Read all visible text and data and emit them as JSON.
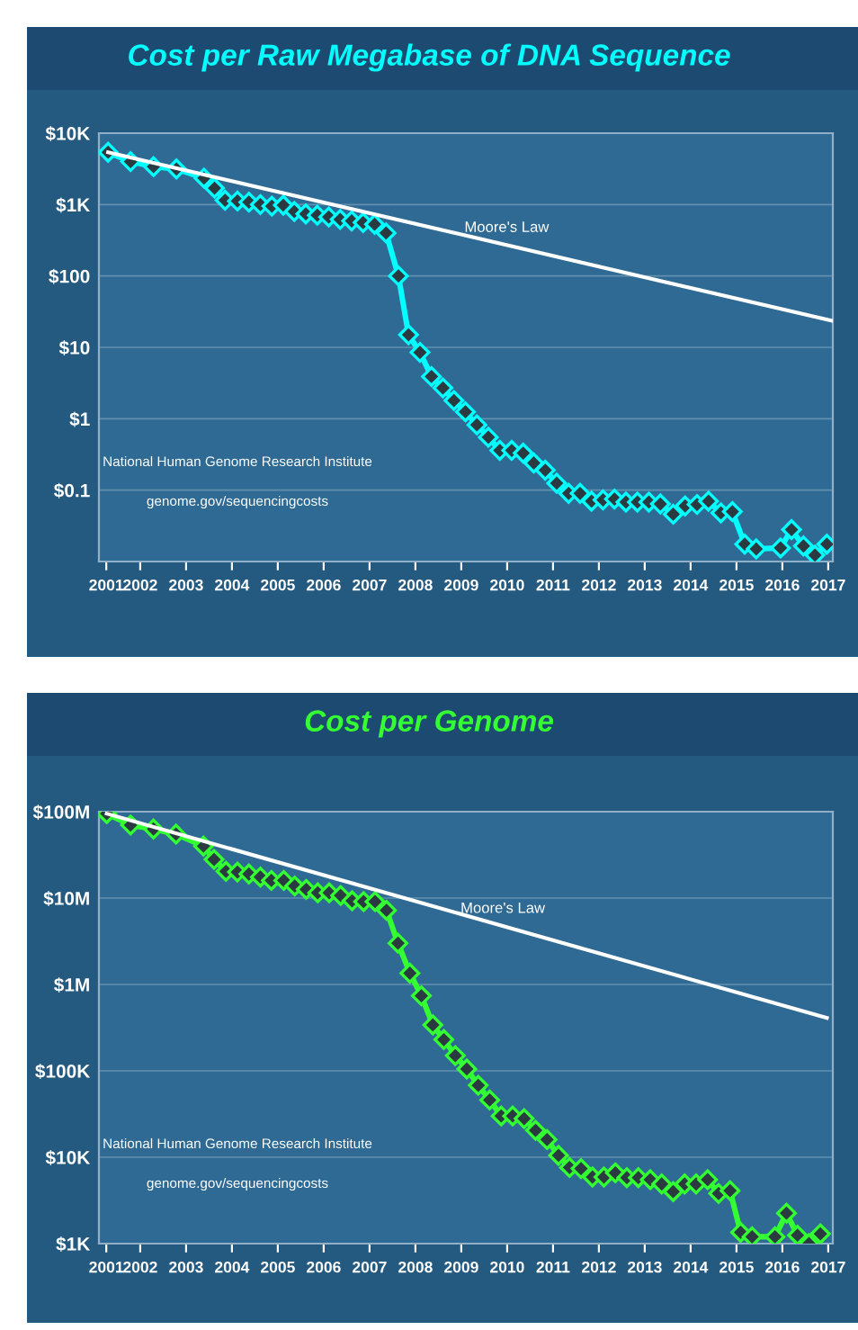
{
  "chart_data": [
    {
      "type": "line",
      "title": "Cost per Raw Megabase of DNA Sequence",
      "log": "y",
      "grid": "y",
      "marker": "diamond",
      "line_style": "solid",
      "xlim": [
        2001.1,
        2017.1
      ],
      "ylim": [
        0.01,
        10000
      ],
      "xticks": [
        {
          "value": 2001.26,
          "label": "2001"
        },
        2002,
        2003,
        2004,
        2005,
        2006,
        2007,
        2008,
        2009,
        2010,
        2011,
        2012,
        2013,
        2014,
        2015,
        2016,
        2017
      ],
      "yticks": [
        {
          "value": 0.01,
          "label": null
        },
        {
          "value": 0.1,
          "label": "$0.1"
        },
        {
          "value": 1,
          "label": "$1"
        },
        {
          "value": 10,
          "label": "$10"
        },
        {
          "value": 100,
          "label": "$100"
        },
        {
          "value": 1000,
          "label": "$1K"
        },
        {
          "value": 10000,
          "label": "$10K"
        }
      ],
      "annotations": [
        "National Human Genome Research Institute",
        "genome.gov/sequencingcosts"
      ],
      "series": [
        {
          "color": "#00ffff",
          "x": [
            2001.3,
            2001.79,
            2002.29,
            2002.79,
            2003.39,
            2003.62,
            2003.85,
            2004.12,
            2004.37,
            2004.62,
            2004.87,
            2005.12,
            2005.36,
            2005.61,
            2005.86,
            2006.11,
            2006.36,
            2006.61,
            2006.86,
            2007.11,
            2007.36,
            2007.63,
            2007.85,
            2008.1,
            2008.35,
            2008.6,
            2008.84,
            2009.09,
            2009.34,
            2009.59,
            2009.84,
            2010.1,
            2010.35,
            2010.58,
            2010.83,
            2011.08,
            2011.34,
            2011.59,
            2011.84,
            2012.09,
            2012.34,
            2012.59,
            2012.84,
            2013.09,
            2013.34,
            2013.62,
            2013.88,
            2014.14,
            2014.39,
            2014.66,
            2014.91,
            2015.18,
            2015.43,
            2015.96,
            2016.2,
            2016.46,
            2016.71,
            2016.97
          ],
          "values": [
            5400,
            4000,
            3400,
            3150,
            2350,
            1700,
            1150,
            1120,
            1080,
            1000,
            950,
            980,
            800,
            740,
            710,
            670,
            620,
            590,
            560,
            530,
            400,
            100,
            15,
            8.5,
            3.9,
            2.7,
            1.8,
            1.25,
            0.82,
            0.55,
            0.36,
            0.36,
            0.33,
            0.24,
            0.19,
            0.125,
            0.09,
            0.09,
            0.07,
            0.073,
            0.075,
            0.068,
            0.068,
            0.068,
            0.064,
            0.046,
            0.06,
            0.063,
            0.07,
            0.048,
            0.05,
            0.0175,
            0.015,
            0.0155,
            0.028,
            0.0165,
            0.0123,
            0.0175
          ]
        },
        {
          "name": "Moore's Law",
          "color": "#ffffff",
          "marker": "none",
          "x": [
            2001.3,
            2017.1
          ],
          "values": [
            5400,
            23.4
          ]
        }
      ]
    },
    {
      "type": "line",
      "title": "Cost per Genome",
      "log": "y",
      "grid": "y",
      "marker": "diamond",
      "line_style": "solid",
      "xlim": [
        2001.1,
        2017.1
      ],
      "ylim": [
        1000,
        100000000
      ],
      "xticks": [
        {
          "value": 2001.26,
          "label": "2001"
        },
        2002,
        2003,
        2004,
        2005,
        2006,
        2007,
        2008,
        2009,
        2010,
        2011,
        2012,
        2013,
        2014,
        2015,
        2016,
        2017
      ],
      "yticks": [
        {
          "value": 1000,
          "label": "$1K"
        },
        {
          "value": 10000,
          "label": "$10K"
        },
        {
          "value": 100000,
          "label": "$100K"
        },
        {
          "value": 1000000,
          "label": "$1M"
        },
        {
          "value": 10000000,
          "label": "$10M"
        },
        {
          "value": 100000000,
          "label": "$100M"
        }
      ],
      "annotations": [
        "National Human Genome Research Institute",
        "genome.gov/sequencingcosts"
      ],
      "series": [
        {
          "color": "#33ff33",
          "x": [
            2001.27,
            2001.79,
            2002.29,
            2002.78,
            2003.38,
            2003.61,
            2003.87,
            2004.12,
            2004.37,
            2004.62,
            2004.86,
            2005.13,
            2005.37,
            2005.62,
            2005.87,
            2006.12,
            2006.37,
            2006.62,
            2006.87,
            2007.12,
            2007.37,
            2007.62,
            2007.88,
            2008.13,
            2008.38,
            2008.62,
            2008.87,
            2009.12,
            2009.37,
            2009.62,
            2009.87,
            2010.12,
            2010.37,
            2010.62,
            2010.87,
            2011.12,
            2011.36,
            2011.61,
            2011.86,
            2012.11,
            2012.36,
            2012.61,
            2012.86,
            2013.12,
            2013.37,
            2013.62,
            2013.87,
            2014.12,
            2014.37,
            2014.61,
            2014.86,
            2015.09,
            2015.34,
            2015.84,
            2016.09,
            2016.33,
            2016.58,
            2016.83
          ],
          "values": [
            95000000,
            70000000,
            63000000,
            55000000,
            40000000,
            28000000,
            20400000,
            20000000,
            19000000,
            17500000,
            16000000,
            16000000,
            13800000,
            12600000,
            11500000,
            11500000,
            10700000,
            9300000,
            9100000,
            9100000,
            7200000,
            3000000,
            1350000,
            740000,
            340000,
            230000,
            150000,
            105000,
            68000,
            46000,
            30000,
            30000,
            28000,
            20500,
            16000,
            10500,
            7600,
            7400,
            5900,
            5900,
            6600,
            5800,
            5800,
            5500,
            4900,
            4000,
            4900,
            4900,
            5500,
            3800,
            4100,
            1350,
            1200,
            1200,
            2250,
            1250,
            1000,
            1300
          ]
        },
        {
          "name": "Moore's Law",
          "color": "#ffffff",
          "marker": "none",
          "x": [
            2001.27,
            2016.97
          ],
          "values": [
            95000000,
            410000
          ]
        }
      ]
    }
  ]
}
